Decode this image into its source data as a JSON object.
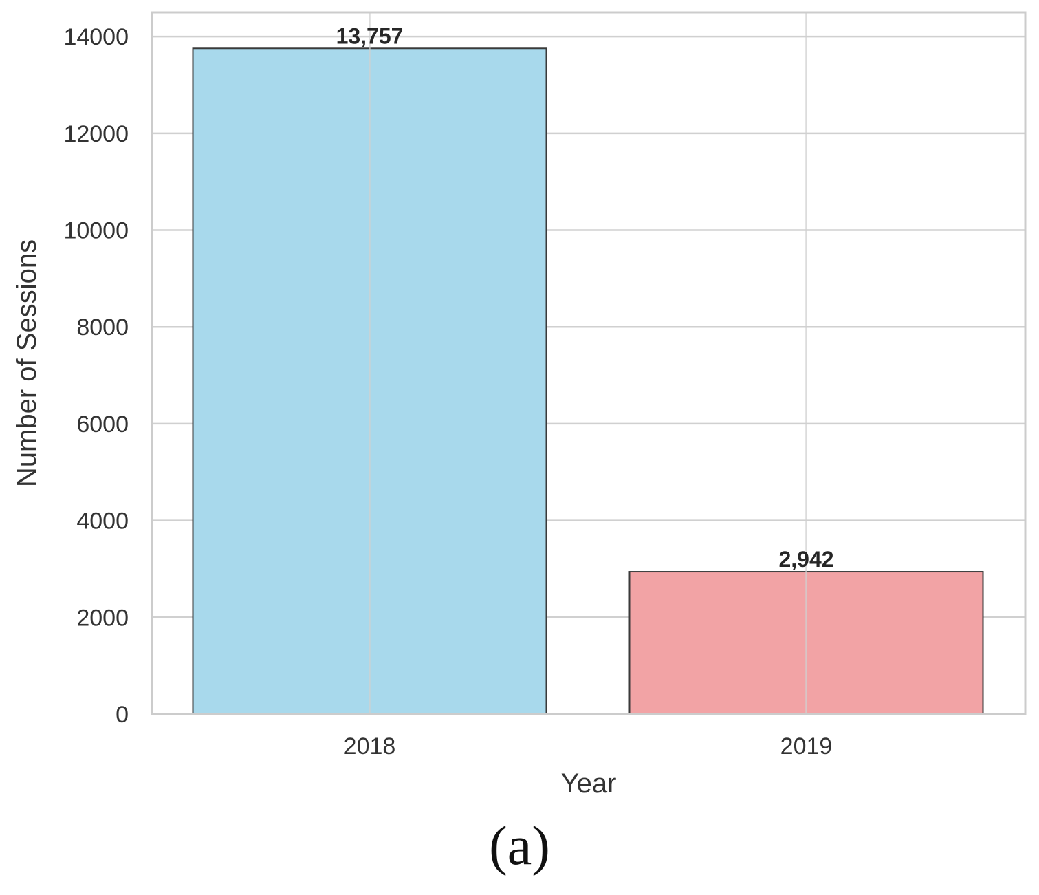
{
  "chart_data": {
    "type": "bar",
    "categories": [
      "2018",
      "2019"
    ],
    "values": [
      13757,
      2942
    ],
    "data_labels": [
      "13,757",
      "2,942"
    ],
    "bar_colors": [
      "#a8d9ec",
      "#f2a3a5"
    ],
    "bar_edge_color": "#3a3a3a",
    "title": "",
    "xlabel": "Year",
    "ylabel": "Number of Sessions",
    "ylim": [
      0,
      14500
    ],
    "yticks": [
      0,
      2000,
      4000,
      6000,
      8000,
      10000,
      12000,
      14000
    ],
    "ytick_labels": [
      "0",
      "2000",
      "4000",
      "6000",
      "8000",
      "10000",
      "12000",
      "14000"
    ],
    "grid": true,
    "grid_color": "#d0d0d0"
  },
  "caption": "(a)"
}
